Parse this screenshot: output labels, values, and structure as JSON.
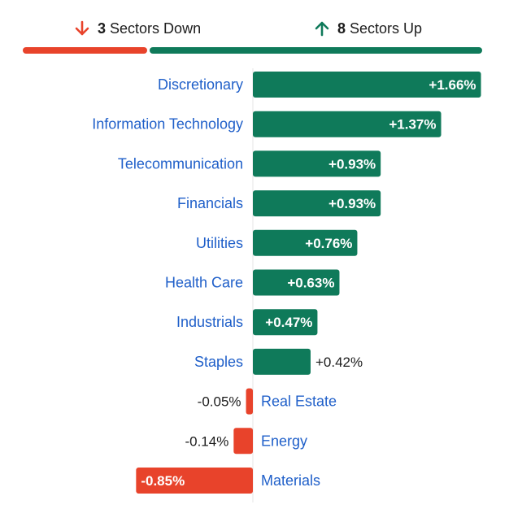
{
  "summary": {
    "down_count": "3",
    "down_text": "Sectors Down",
    "up_count": "8",
    "up_text": "Sectors Up",
    "down_color": "#e8432b",
    "up_color": "#0f7a5a"
  },
  "chart_data": {
    "type": "bar",
    "orientation": "horizontal",
    "categories": [
      "Discretionary",
      "Information Technology",
      "Telecommunication",
      "Financials",
      "Utilities",
      "Health Care",
      "Industrials",
      "Staples",
      "Real Estate",
      "Energy",
      "Materials"
    ],
    "values": [
      1.66,
      1.37,
      0.93,
      0.93,
      0.76,
      0.63,
      0.47,
      0.42,
      -0.05,
      -0.14,
      -0.85
    ],
    "value_labels": [
      "+1.66%",
      "+1.37%",
      "+0.93%",
      "+0.93%",
      "+0.76%",
      "+0.63%",
      "+0.47%",
      "+0.42%",
      "-0.05%",
      "-0.14%",
      "-0.85%"
    ],
    "positive_color": "#0f7a5a",
    "negative_color": "#e8432b",
    "label_color": "#1f5fc9",
    "title": "",
    "xlabel": "",
    "ylabel": ""
  }
}
